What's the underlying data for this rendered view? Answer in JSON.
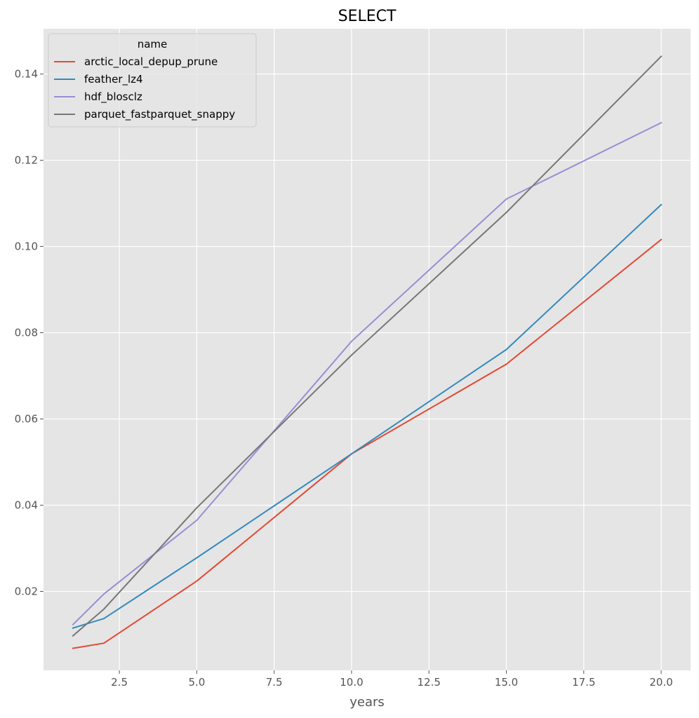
{
  "chart_data": {
    "type": "line",
    "title": "SELECT",
    "xlabel": "years",
    "ylabel": "",
    "x": [
      1,
      2,
      5,
      10,
      15,
      20
    ],
    "xlim": [
      0.05,
      20.95
    ],
    "ylim": [
      0.0017,
      0.1505
    ],
    "x_ticks": [
      2.5,
      5.0,
      7.5,
      10.0,
      12.5,
      15.0,
      17.5,
      20.0
    ],
    "x_tick_labels": [
      "2.5",
      "5.0",
      "7.5",
      "10.0",
      "12.5",
      "15.0",
      "17.5",
      "20.0"
    ],
    "y_ticks": [
      0.02,
      0.04,
      0.06,
      0.08,
      0.1,
      0.12,
      0.14
    ],
    "y_tick_labels": [
      "0.02",
      "0.04",
      "0.06",
      "0.08",
      "0.10",
      "0.12",
      "0.14"
    ],
    "grid": true,
    "legend": {
      "title": "name",
      "position": "top-left"
    },
    "series": [
      {
        "name": "arctic_local_depup_prune",
        "color": "#E24A33",
        "values": [
          0.0068,
          0.008,
          0.0224,
          0.0519,
          0.0727,
          0.1016
        ]
      },
      {
        "name": "feather_lz4",
        "color": "#348ABD",
        "values": [
          0.0115,
          0.0137,
          0.0278,
          0.0519,
          0.0761,
          0.1097
        ]
      },
      {
        "name": "hdf_blosclz",
        "color": "#988ED5",
        "values": [
          0.0123,
          0.0194,
          0.0365,
          0.078,
          0.111,
          0.1287
        ]
      },
      {
        "name": "parquet_fastparquet_snappy",
        "color": "#777777",
        "values": [
          0.0097,
          0.0159,
          0.0394,
          0.0748,
          0.1079,
          0.1441
        ]
      }
    ]
  }
}
